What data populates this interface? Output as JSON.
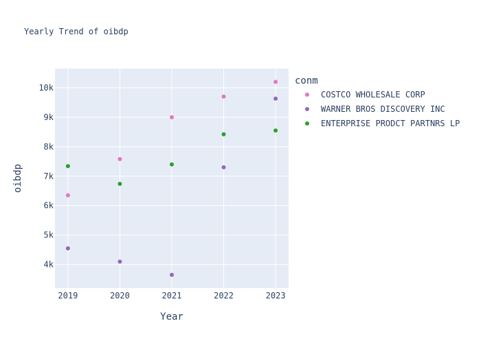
{
  "chart_data": {
    "type": "scatter",
    "title": "Yearly Trend of oibdp",
    "xlabel": "Year",
    "ylabel": "oibdp",
    "x": [
      2019,
      2020,
      2021,
      2022,
      2023
    ],
    "x_tick_labels": [
      "2019",
      "2020",
      "2021",
      "2022",
      "2023"
    ],
    "xlim": [
      2018.75,
      2023.25
    ],
    "ylim": [
      3200,
      10650
    ],
    "y_ticks": [
      4000,
      5000,
      6000,
      7000,
      8000,
      9000,
      10000
    ],
    "y_tick_labels": [
      "4k",
      "5k",
      "6k",
      "7k",
      "8k",
      "9k",
      "10k"
    ],
    "grid": true,
    "legend": {
      "title": "conm",
      "placement": "right"
    },
    "series": [
      {
        "name": "COSTCO WHOLESALE CORP",
        "color": "#e377c2",
        "values": [
          6350,
          7580,
          9000,
          9700,
          10200
        ]
      },
      {
        "name": "WARNER BROS DISCOVERY INC",
        "color": "#9467bd",
        "values": [
          4550,
          4100,
          3650,
          7300,
          9630
        ]
      },
      {
        "name": "ENTERPRISE PRODCT PARTNRS LP",
        "color": "#2ca02c",
        "values": [
          7340,
          6740,
          7400,
          8420,
          8550
        ]
      }
    ]
  }
}
